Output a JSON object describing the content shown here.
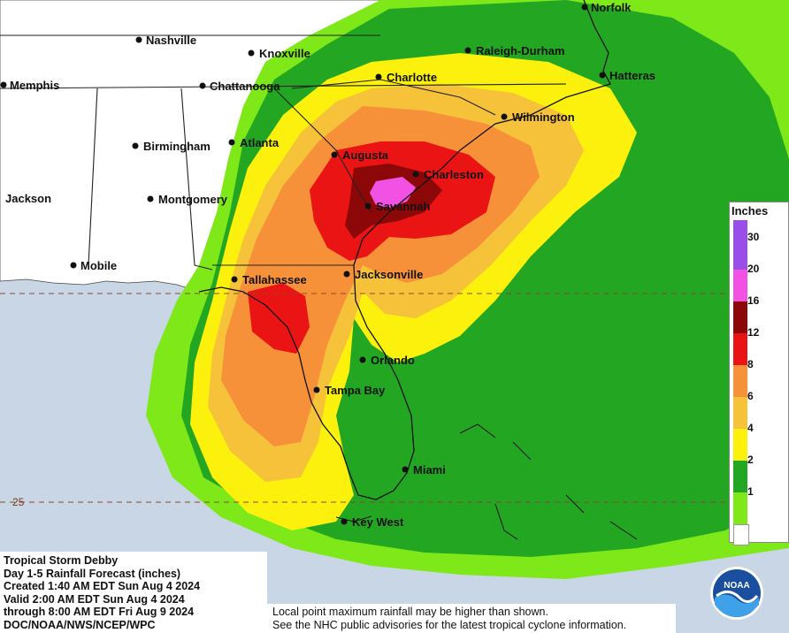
{
  "map": {
    "cities": [
      {
        "name": "Norfolk"
      },
      {
        "name": "Nashville"
      },
      {
        "name": "Knoxville"
      },
      {
        "name": "Raleigh-Durham"
      },
      {
        "name": "Memphis"
      },
      {
        "name": "Chattanooga"
      },
      {
        "name": "Charlotte"
      },
      {
        "name": "Hatteras"
      },
      {
        "name": "Wilmington"
      },
      {
        "name": "Birmingham"
      },
      {
        "name": "Atlanta"
      },
      {
        "name": "Augusta"
      },
      {
        "name": "Charleston"
      },
      {
        "name": "Jackson"
      },
      {
        "name": "Montgomery"
      },
      {
        "name": "Savannah"
      },
      {
        "name": "Mobile"
      },
      {
        "name": "Tallahassee"
      },
      {
        "name": "Jacksonville"
      },
      {
        "name": "Orlando"
      },
      {
        "name": "Tampa Bay"
      },
      {
        "name": "Miami"
      },
      {
        "name": "Key West"
      }
    ],
    "latitude_label": "25"
  },
  "legend": {
    "title": "Inches",
    "levels": [
      {
        "value": "30",
        "color": "#7e3fe0"
      },
      {
        "value": "20",
        "color": "#f251e4"
      },
      {
        "value": "16",
        "color": "#8c0808"
      },
      {
        "value": "12",
        "color": "#ea1414"
      },
      {
        "value": "8",
        "color": "#f6913a"
      },
      {
        "value": "6",
        "color": "#f5c23a"
      },
      {
        "value": "4",
        "color": "#fbf10c"
      },
      {
        "value": "2",
        "color": "#23a621"
      },
      {
        "value": "1",
        "color": "#7ee818"
      }
    ],
    "top_color": "#9a4de8",
    "bottom_color": "#ffffff"
  },
  "info": {
    "line1": "Tropical Storm Debby",
    "line2": "Day 1-5 Rainfall Forecast (inches)",
    "line3": "Created 1:40 AM EDT Sun Aug 4 2024",
    "line4": "Valid 2:00 AM EDT Sun Aug 4 2024",
    "line5": "through 8:00 AM EDT Fri Aug 9 2024",
    "line6": "DOC/NOAA/NWS/NCEP/WPC"
  },
  "note": {
    "line1": "Local point maximum rainfall may be higher than shown.",
    "line2": "See the NHC public advisories for the latest tropical cyclone information."
  },
  "logo": {
    "text": "NOAA"
  }
}
